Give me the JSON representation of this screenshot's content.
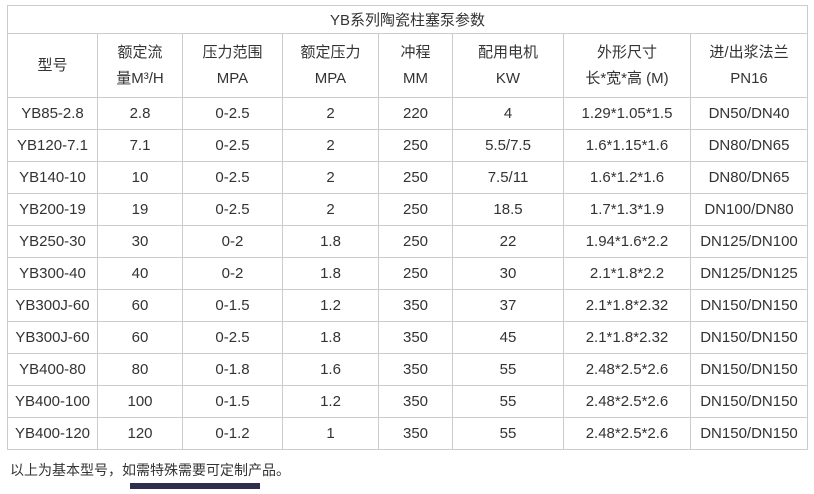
{
  "title": "YB系列陶瓷柱塞泵参数",
  "table": {
    "headers": [
      {
        "line1": "型号",
        "line2": ""
      },
      {
        "line1": "额定流",
        "line2": "量M³/H"
      },
      {
        "line1": "压力范围",
        "line2": "MPA"
      },
      {
        "line1": "额定压力",
        "line2": "MPA"
      },
      {
        "line1": "冲程",
        "line2": "MM"
      },
      {
        "line1": "配用电机",
        "line2": "KW"
      },
      {
        "line1": "外形尺寸",
        "line2": "长*宽*高 (M)"
      },
      {
        "line1": "进/出浆法兰",
        "line2": "PN16"
      }
    ],
    "rows": [
      [
        "YB85-2.8",
        "2.8",
        "0-2.5",
        "2",
        "220",
        "4",
        "1.29*1.05*1.5",
        "DN50/DN40"
      ],
      [
        "YB120-7.1",
        "7.1",
        "0-2.5",
        "2",
        "250",
        "5.5/7.5",
        "1.6*1.15*1.6",
        "DN80/DN65"
      ],
      [
        "YB140-10",
        "10",
        "0-2.5",
        "2",
        "250",
        "7.5/11",
        "1.6*1.2*1.6",
        "DN80/DN65"
      ],
      [
        "YB200-19",
        "19",
        "0-2.5",
        "2",
        "250",
        "18.5",
        "1.7*1.3*1.9",
        "DN100/DN80"
      ],
      [
        "YB250-30",
        "30",
        "0-2",
        "1.8",
        "250",
        "22",
        "1.94*1.6*2.2",
        "DN125/DN100"
      ],
      [
        "YB300-40",
        "40",
        "0-2",
        "1.8",
        "250",
        "30",
        "2.1*1.8*2.2",
        "DN125/DN125"
      ],
      [
        "YB300J-60",
        "60",
        "0-1.5",
        "1.2",
        "350",
        "37",
        "2.1*1.8*2.32",
        "DN150/DN150"
      ],
      [
        "YB300J-60",
        "60",
        "0-2.5",
        "1.8",
        "350",
        "45",
        "2.1*1.8*2.32",
        "DN150/DN150"
      ],
      [
        "YB400-80",
        "80",
        "0-1.8",
        "1.6",
        "350",
        "55",
        "2.48*2.5*2.6",
        "DN150/DN150"
      ],
      [
        "YB400-100",
        "100",
        "0-1.5",
        "1.2",
        "350",
        "55",
        "2.48*2.5*2.6",
        "DN150/DN150"
      ],
      [
        "YB400-120",
        "120",
        "0-1.2",
        "1",
        "350",
        "55",
        "2.48*2.5*2.6",
        "DN150/DN150"
      ]
    ]
  },
  "footer": {
    "note": "以上为基本型号，如需特殊需要可定制产品。"
  }
}
